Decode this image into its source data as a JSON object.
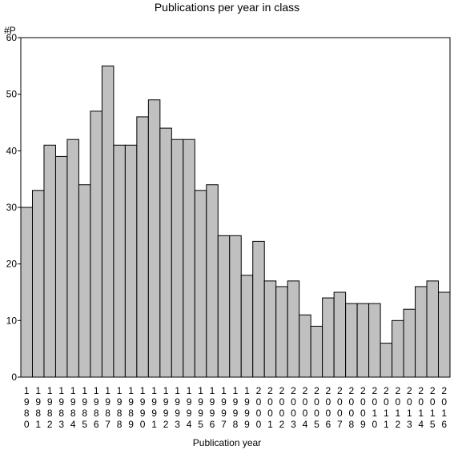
{
  "chart_data": {
    "type": "bar",
    "title": "Publications per year in class",
    "ylabel": "#P",
    "xlabel": "Publication year",
    "ylim": [
      0,
      60
    ],
    "yticks": [
      0,
      10,
      20,
      30,
      40,
      50,
      60
    ],
    "grid": false,
    "bar_color": "#c0c0c0",
    "edge_color": "#000000",
    "categories": [
      "1980",
      "1981",
      "1982",
      "1983",
      "1984",
      "1985",
      "1986",
      "1987",
      "1988",
      "1989",
      "1990",
      "1991",
      "1992",
      "1993",
      "1994",
      "1995",
      "1996",
      "1997",
      "1998",
      "1999",
      "2000",
      "2001",
      "2002",
      "2003",
      "2004",
      "2005",
      "2006",
      "2007",
      "2008",
      "2009",
      "2010",
      "2011",
      "2012",
      "2013",
      "2014",
      "2015",
      "2016"
    ],
    "values": [
      30,
      33,
      41,
      39,
      42,
      34,
      47,
      55,
      41,
      41,
      46,
      49,
      44,
      42,
      42,
      33,
      34,
      25,
      25,
      18,
      24,
      17,
      16,
      17,
      11,
      9,
      14,
      15,
      13,
      13,
      13,
      6,
      10,
      12,
      16,
      17,
      15
    ]
  }
}
